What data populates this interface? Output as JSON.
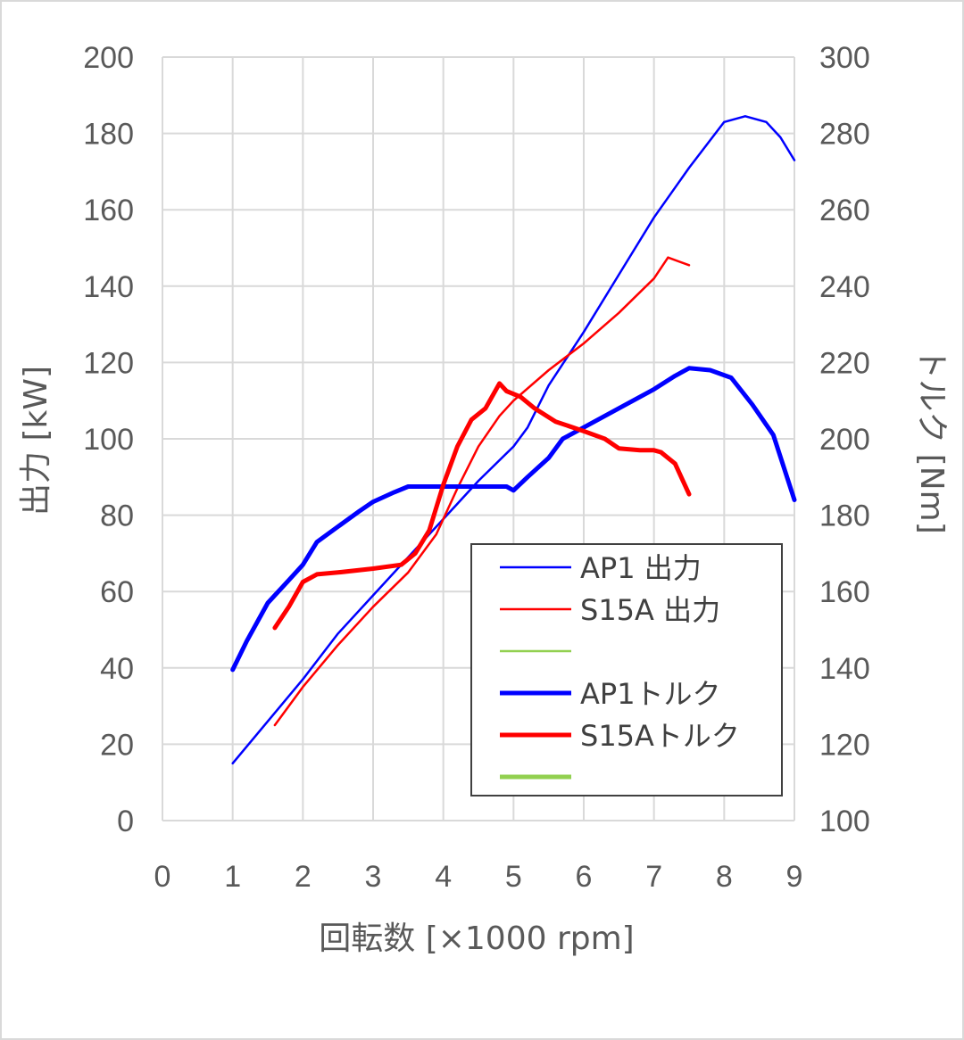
{
  "chart_data": {
    "type": "line",
    "xlabel": "回転数 [×1000 rpm]",
    "ylabel": "出力 [kW]",
    "y2label": "トルク [Nm]",
    "xlim": [
      0,
      9
    ],
    "ylim": [
      0,
      200
    ],
    "y2lim": [
      100,
      300
    ],
    "x_ticks": [
      "0",
      "1",
      "2",
      "3",
      "4",
      "5",
      "6",
      "7",
      "8",
      "9"
    ],
    "y_ticks": [
      "0",
      "20",
      "40",
      "60",
      "80",
      "100",
      "120",
      "140",
      "160",
      "180",
      "200"
    ],
    "y2_ticks": [
      "100",
      "120",
      "140",
      "160",
      "180",
      "200",
      "220",
      "240",
      "260",
      "280",
      "300"
    ],
    "grid": true,
    "legend_position": "lower-right inside plot",
    "series": [
      {
        "name": "AP1 出力",
        "axis": "left",
        "color": "#0000ff",
        "line": "thin",
        "points": [
          [
            1.0,
            15
          ],
          [
            1.5,
            26
          ],
          [
            2.0,
            37
          ],
          [
            2.5,
            49
          ],
          [
            3.0,
            59
          ],
          [
            3.5,
            69
          ],
          [
            4.0,
            79
          ],
          [
            4.5,
            89
          ],
          [
            5.0,
            98
          ],
          [
            5.2,
            103
          ],
          [
            5.5,
            114
          ],
          [
            6.0,
            128
          ],
          [
            6.5,
            143
          ],
          [
            7.0,
            158
          ],
          [
            7.5,
            171
          ],
          [
            8.0,
            183
          ],
          [
            8.3,
            184.5
          ],
          [
            8.6,
            183
          ],
          [
            8.8,
            179
          ],
          [
            9.0,
            173
          ]
        ]
      },
      {
        "name": "S15A 出力",
        "axis": "left",
        "color": "#ff0000",
        "line": "thin",
        "points": [
          [
            1.6,
            25
          ],
          [
            2.0,
            35
          ],
          [
            2.5,
            46
          ],
          [
            3.0,
            56
          ],
          [
            3.5,
            65
          ],
          [
            3.9,
            75
          ],
          [
            4.2,
            87
          ],
          [
            4.5,
            98
          ],
          [
            4.8,
            106
          ],
          [
            5.0,
            110
          ],
          [
            5.5,
            118
          ],
          [
            6.0,
            125
          ],
          [
            6.5,
            133
          ],
          [
            7.0,
            142
          ],
          [
            7.2,
            147.5
          ],
          [
            7.5,
            145.5
          ]
        ]
      },
      {
        "name": "",
        "axis": "left",
        "color": "#92d050",
        "line": "thin",
        "points": []
      },
      {
        "name": "AP1トルク",
        "axis": "right",
        "color": "#0000ff",
        "line": "thick",
        "points": [
          [
            1.0,
            139.5
          ],
          [
            1.2,
            147
          ],
          [
            1.5,
            157
          ],
          [
            1.8,
            163
          ],
          [
            2.0,
            167
          ],
          [
            2.2,
            173
          ],
          [
            2.5,
            177
          ],
          [
            2.8,
            181
          ],
          [
            3.0,
            183.5
          ],
          [
            3.3,
            186
          ],
          [
            3.5,
            187.5
          ],
          [
            4.0,
            187.5
          ],
          [
            4.5,
            187.5
          ],
          [
            4.9,
            187.5
          ],
          [
            5.0,
            186.5
          ],
          [
            5.2,
            190
          ],
          [
            5.5,
            195
          ],
          [
            5.7,
            200
          ],
          [
            6.0,
            203
          ],
          [
            6.5,
            208
          ],
          [
            7.0,
            213
          ],
          [
            7.3,
            216.5
          ],
          [
            7.5,
            218.5
          ],
          [
            7.8,
            218
          ],
          [
            8.1,
            216
          ],
          [
            8.4,
            209
          ],
          [
            8.7,
            201
          ],
          [
            9.0,
            184
          ]
        ]
      },
      {
        "name": "S15Aトルク",
        "axis": "right",
        "color": "#ff0000",
        "line": "thick",
        "points": [
          [
            1.6,
            150.5
          ],
          [
            1.8,
            156
          ],
          [
            2.0,
            162.5
          ],
          [
            2.2,
            164.5
          ],
          [
            2.5,
            165
          ],
          [
            3.0,
            166
          ],
          [
            3.4,
            167
          ],
          [
            3.6,
            170
          ],
          [
            3.8,
            176
          ],
          [
            4.0,
            188
          ],
          [
            4.2,
            198
          ],
          [
            4.4,
            205
          ],
          [
            4.6,
            208
          ],
          [
            4.8,
            214.5
          ],
          [
            4.9,
            212.5
          ],
          [
            5.1,
            211
          ],
          [
            5.3,
            208
          ],
          [
            5.6,
            204.5
          ],
          [
            6.0,
            202
          ],
          [
            6.3,
            200
          ],
          [
            6.5,
            197.5
          ],
          [
            6.8,
            197
          ],
          [
            7.0,
            197
          ],
          [
            7.1,
            196.5
          ],
          [
            7.3,
            193.5
          ],
          [
            7.5,
            185.5
          ]
        ]
      },
      {
        "name": "",
        "axis": "right",
        "color": "#92d050",
        "line": "thick",
        "points": []
      }
    ]
  }
}
